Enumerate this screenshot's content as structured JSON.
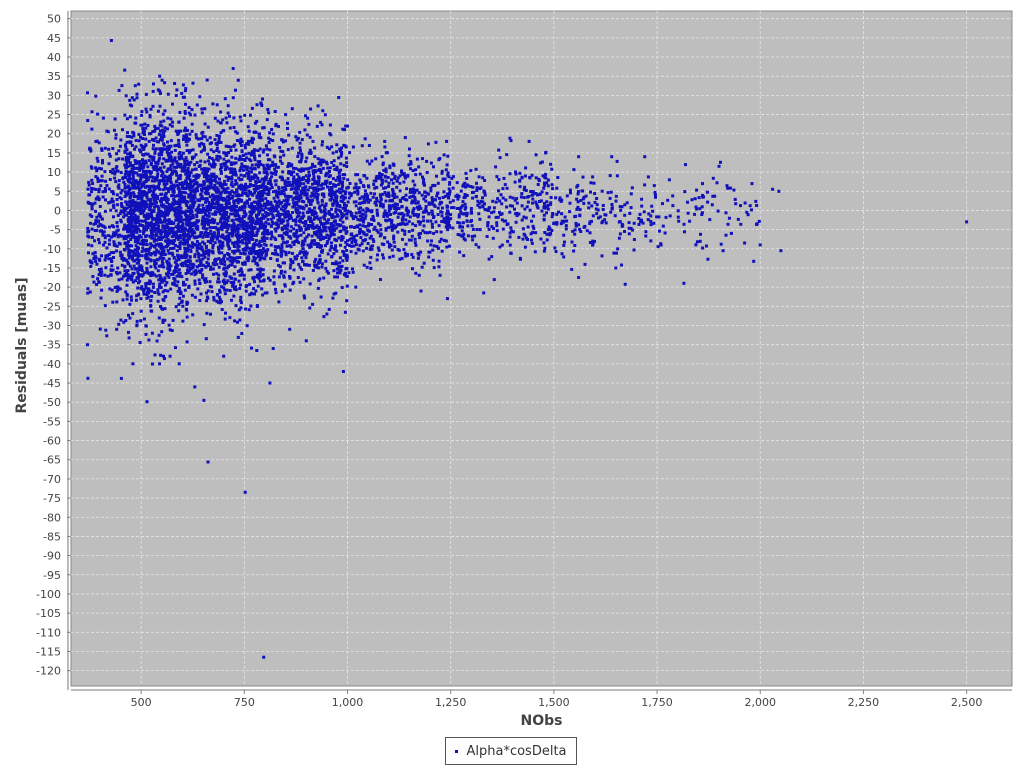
{
  "chart_data": {
    "type": "scatter",
    "title": "",
    "xlabel": "NObs",
    "ylabel": "Residuals [muas]",
    "xlim": [
      330,
      2610
    ],
    "ylim": [
      -124,
      52
    ],
    "x_ticks": [
      500,
      750,
      1000,
      1250,
      1500,
      1750,
      2000,
      2250,
      2500
    ],
    "x_tick_labels": [
      "500",
      "750",
      "1,000",
      "1,250",
      "1,500",
      "1,750",
      "2,000",
      "2,250",
      "2,500"
    ],
    "y_ticks": [
      50,
      45,
      40,
      35,
      30,
      25,
      20,
      15,
      10,
      5,
      0,
      -5,
      -10,
      -15,
      -20,
      -25,
      -30,
      -35,
      -40,
      -45,
      -50,
      -55,
      -60,
      -65,
      -70,
      -75,
      -80,
      -85,
      -90,
      -95,
      -100,
      -105,
      -110,
      -115,
      -120
    ],
    "grid": true,
    "background_color": "#bebebe",
    "grid_color": "#e6e6e6",
    "legend_position": "bottom-center",
    "series": [
      {
        "name": "Alpha*cosDelta",
        "color": "#1111bb",
        "points": [
          [
            428,
            44.3
          ],
          [
            460,
            36.6
          ],
          [
            545,
            35
          ],
          [
            723,
            37
          ],
          [
            660,
            34
          ],
          [
            530,
            33
          ],
          [
            370,
            -35
          ],
          [
            452,
            -43.8
          ],
          [
            630,
            -46
          ],
          [
            652,
            -49.5
          ],
          [
            662,
            -65.6
          ],
          [
            752,
            -73.5
          ],
          [
            797,
            -116.5
          ],
          [
            812,
            -45
          ],
          [
            990,
            -42
          ],
          [
            570,
            -38
          ],
          [
            700,
            -38
          ],
          [
            820,
            -36
          ],
          [
            480,
            -40
          ],
          [
            1242,
            -23
          ],
          [
            1330,
            -21.5
          ],
          [
            1178,
            -21
          ],
          [
            1560,
            -17.5
          ],
          [
            1650,
            -15
          ],
          [
            1815,
            -19
          ],
          [
            2500,
            -3
          ],
          [
            2050,
            -10.5
          ],
          [
            2045,
            5
          ],
          [
            2000,
            -9
          ],
          [
            1980,
            7
          ],
          [
            2030,
            5.5
          ],
          [
            1930,
            -6
          ],
          [
            1910,
            -10.5
          ],
          [
            1900,
            11.5
          ],
          [
            1860,
            7
          ],
          [
            1780,
            8
          ],
          [
            1720,
            14
          ],
          [
            1640,
            14
          ],
          [
            1560,
            14
          ],
          [
            1480,
            15
          ],
          [
            1440,
            18
          ],
          [
            1240,
            18
          ],
          [
            1140,
            19
          ],
          [
            1090,
            18
          ],
          [
            1000,
            22
          ],
          [
            940,
            26
          ],
          [
            850,
            25
          ],
          [
            790,
            28
          ],
          [
            860,
            -31
          ],
          [
            900,
            -34
          ],
          [
            950,
            -27
          ],
          [
            1020,
            -20
          ],
          [
            1080,
            -18
          ]
        ],
        "cloud": [
          {
            "from": 370,
            "to": 460,
            "count": 320,
            "center": -2,
            "spread": 12
          },
          {
            "from": 460,
            "to": 620,
            "count": 1700,
            "center": -1,
            "spread": 13
          },
          {
            "from": 620,
            "to": 800,
            "count": 1500,
            "center": -1,
            "spread": 11.5
          },
          {
            "from": 800,
            "to": 1000,
            "count": 1100,
            "center": 0,
            "spread": 9.5
          },
          {
            "from": 1000,
            "to": 1250,
            "count": 650,
            "center": 0,
            "spread": 7
          },
          {
            "from": 1250,
            "to": 1500,
            "count": 320,
            "center": 0,
            "spread": 6
          },
          {
            "from": 1500,
            "to": 1750,
            "count": 180,
            "center": -1,
            "spread": 5.5
          },
          {
            "from": 1750,
            "to": 2000,
            "count": 80,
            "center": 0,
            "spread": 5
          }
        ]
      }
    ]
  }
}
